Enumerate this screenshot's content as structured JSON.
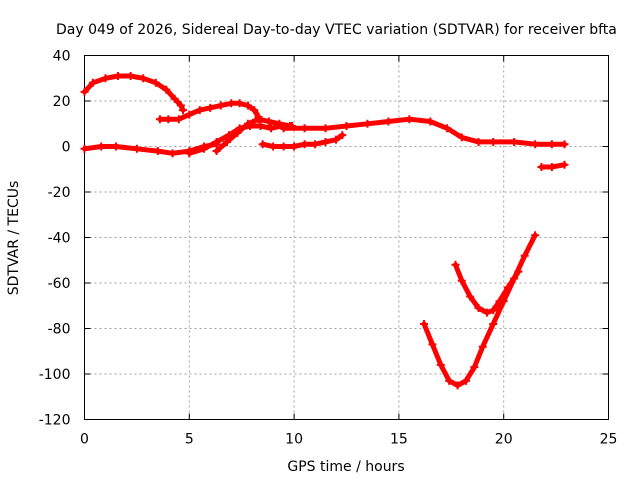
{
  "chart_data": {
    "type": "line",
    "title": "Day 049 of 2026, Sidereal Day-to-day VTEC variation (SDTVAR) for receiver bfta",
    "xlabel": "GPS time / hours",
    "ylabel": "SDTVAR / TECUs",
    "xlim": [
      0,
      25
    ],
    "ylim": [
      -120,
      40
    ],
    "xticks": [
      0,
      5,
      10,
      15,
      20,
      25
    ],
    "yticks": [
      -120,
      -100,
      -80,
      -60,
      -40,
      -20,
      0,
      20,
      40
    ],
    "grid": true,
    "series_color": "#ff0000",
    "series": [
      {
        "x": [
          0.0,
          0.4,
          1.0,
          1.6,
          2.2,
          2.8,
          3.4,
          3.9,
          4.3,
          4.6,
          4.7
        ],
        "y": [
          24,
          28,
          30,
          31,
          31,
          30,
          28,
          25,
          21,
          18,
          16
        ]
      },
      {
        "x": [
          3.6,
          4.0,
          4.5,
          5.0,
          5.5,
          6.0,
          6.5,
          7.0,
          7.4,
          7.8,
          8.1,
          8.3
        ],
        "y": [
          12,
          12,
          12,
          14,
          16,
          17,
          18,
          19,
          19,
          18,
          16,
          13
        ]
      },
      {
        "x": [
          0.0,
          0.8,
          1.5,
          2.5,
          3.5,
          4.2,
          5.0,
          5.7,
          6.3
        ],
        "y": [
          -1,
          0,
          0,
          -1,
          -2,
          -3,
          -2,
          0,
          1
        ]
      },
      {
        "x": [
          5.0,
          5.7,
          6.3,
          6.9,
          7.4,
          7.9,
          8.4,
          8.9,
          9.4,
          9.9
        ],
        "y": [
          -3,
          -1,
          2,
          5,
          8,
          9,
          9,
          8,
          9,
          9
        ]
      },
      {
        "x": [
          6.3,
          6.8,
          7.3,
          7.8,
          8.3,
          8.8,
          9.3,
          9.8
        ],
        "y": [
          -2,
          2,
          6,
          10,
          12,
          11,
          10,
          9
        ]
      },
      {
        "x": [
          8.5,
          9.0,
          9.5,
          10.0,
          10.5,
          11.0,
          11.5,
          12.0,
          12.3
        ],
        "y": [
          1,
          0,
          0,
          0,
          1,
          1,
          2,
          3,
          5
        ]
      },
      {
        "x": [
          9.5,
          10.5,
          11.5,
          12.5,
          13.5,
          14.5,
          15.5,
          16.5,
          17.3,
          18.0,
          18.8,
          19.5,
          20.5,
          21.5,
          22.3,
          22.9
        ],
        "y": [
          8,
          8,
          8,
          9,
          10,
          11,
          12,
          11,
          8,
          4,
          2,
          2,
          2,
          1,
          1,
          1
        ]
      },
      {
        "x": [
          21.8,
          22.3,
          22.9
        ],
        "y": [
          -9,
          -9,
          -8
        ]
      },
      {
        "x": [
          16.2,
          16.6,
          17.0,
          17.4,
          17.8,
          18.2,
          18.6,
          19.0,
          19.5,
          20.0,
          20.5,
          21.0,
          21.5
        ],
        "y": [
          -78,
          -87,
          -96,
          -103,
          -105,
          -103,
          -97,
          -88,
          -78,
          -68,
          -58,
          -48,
          -39
        ]
      },
      {
        "x": [
          17.7,
          18.0,
          18.4,
          18.8,
          19.2,
          19.5,
          19.8,
          20.2,
          20.7
        ],
        "y": [
          -52,
          -59,
          -66,
          -71,
          -73,
          -72,
          -68,
          -62,
          -55
        ]
      }
    ]
  }
}
